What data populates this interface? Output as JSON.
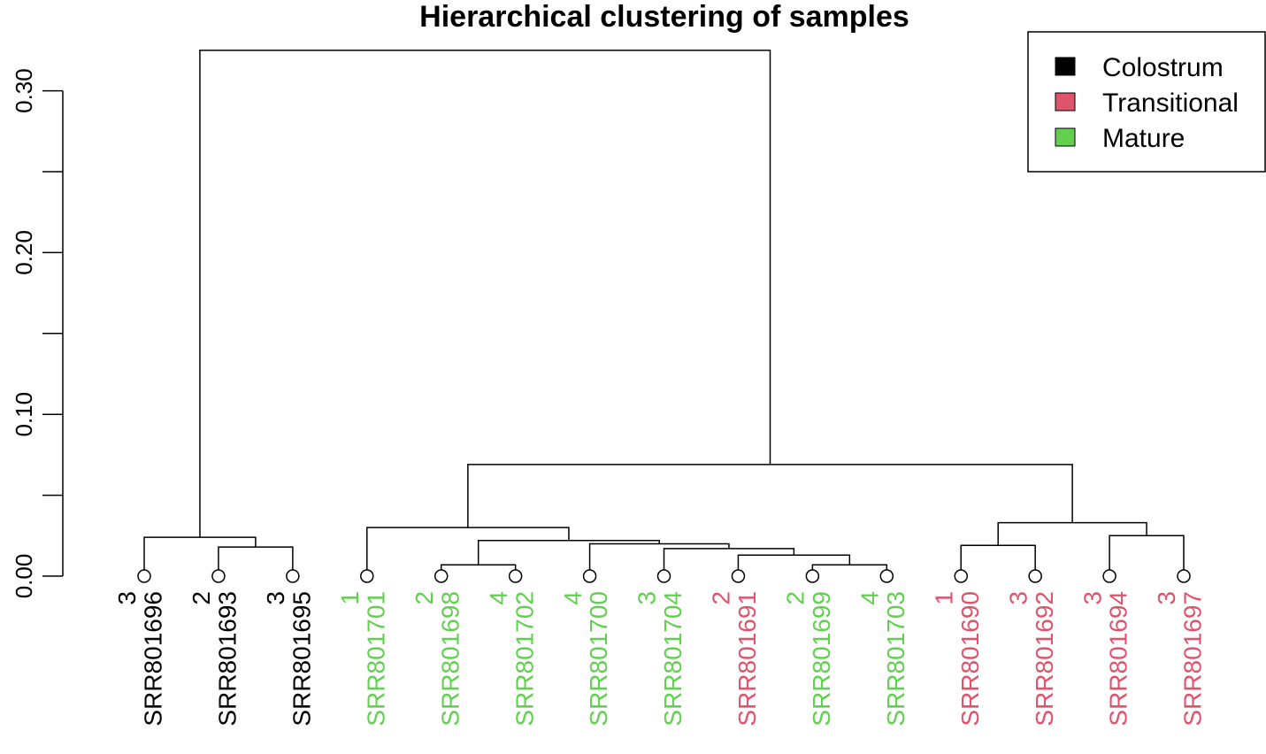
{
  "chart_data": {
    "type": "dendrogram",
    "title": "Hierarchical clustering of samples",
    "ylim": [
      0,
      0.325
    ],
    "y_ticks": [
      0.0,
      0.05,
      0.1,
      0.15,
      0.2,
      0.25,
      0.3
    ],
    "y_tick_labels": [
      {
        "value": 0.0,
        "label": "0.00"
      },
      {
        "value": 0.1,
        "label": "0.10"
      },
      {
        "value": 0.2,
        "label": "0.20"
      },
      {
        "value": 0.3,
        "label": "0.30"
      }
    ],
    "leaves": [
      {
        "id": "SRR801696",
        "num": "3",
        "group": "Colostrum"
      },
      {
        "id": "SRR801693",
        "num": "2",
        "group": "Colostrum"
      },
      {
        "id": "SRR801695",
        "num": "3",
        "group": "Colostrum"
      },
      {
        "id": "SRR801701",
        "num": "1",
        "group": "Mature"
      },
      {
        "id": "SRR801698",
        "num": "2",
        "group": "Mature"
      },
      {
        "id": "SRR801702",
        "num": "4",
        "group": "Mature"
      },
      {
        "id": "SRR801700",
        "num": "4",
        "group": "Mature"
      },
      {
        "id": "SRR801704",
        "num": "3",
        "group": "Mature"
      },
      {
        "id": "SRR801691",
        "num": "2",
        "group": "Transitional"
      },
      {
        "id": "SRR801699",
        "num": "2",
        "group": "Mature"
      },
      {
        "id": "SRR801703",
        "num": "4",
        "group": "Mature"
      },
      {
        "id": "SRR801690",
        "num": "1",
        "group": "Transitional"
      },
      {
        "id": "SRR801692",
        "num": "3",
        "group": "Transitional"
      },
      {
        "id": "SRR801694",
        "num": "3",
        "group": "Transitional"
      },
      {
        "id": "SRR801697",
        "num": "3",
        "group": "Transitional"
      }
    ],
    "merges": [
      {
        "a": "L1",
        "b": "L2",
        "height": 0.018
      },
      {
        "a": "L0",
        "b": "M0",
        "height": 0.024
      },
      {
        "a": "L4",
        "b": "L5",
        "height": 0.007
      },
      {
        "a": "L9",
        "b": "L10",
        "height": 0.007
      },
      {
        "a": "L8",
        "b": "M3",
        "height": 0.013
      },
      {
        "a": "L7",
        "b": "M4",
        "height": 0.017
      },
      {
        "a": "L6",
        "b": "M5",
        "height": 0.02
      },
      {
        "a": "M2",
        "b": "M6",
        "height": 0.022
      },
      {
        "a": "L3",
        "b": "M7",
        "height": 0.03
      },
      {
        "a": "L11",
        "b": "L12",
        "height": 0.019
      },
      {
        "a": "L13",
        "b": "L14",
        "height": 0.025
      },
      {
        "a": "M9",
        "b": "M10",
        "height": 0.033
      },
      {
        "a": "M8",
        "b": "M11",
        "height": 0.069
      },
      {
        "a": "M1",
        "b": "M12",
        "height": 0.325
      }
    ],
    "legend": {
      "position": "top-right",
      "entries": [
        {
          "label": "Colostrum",
          "color": "#000000"
        },
        {
          "label": "Transitional",
          "color": "#DF536B"
        },
        {
          "label": "Mature",
          "color": "#61D04F"
        }
      ]
    }
  }
}
